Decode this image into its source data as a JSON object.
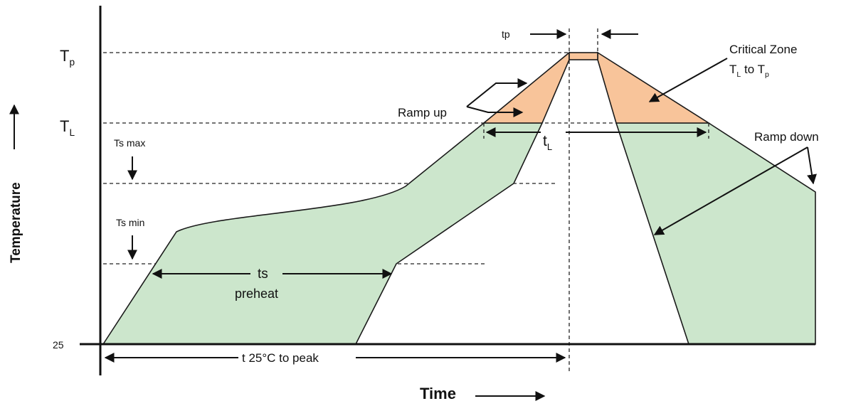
{
  "axis": {
    "y_label": "Temperature",
    "x_label": "Time",
    "origin_label": "25"
  },
  "levels": {
    "tp": {
      "main": "T",
      "sub": "p"
    },
    "tl": {
      "main": "T",
      "sub": "L"
    },
    "ts_max": "Ts max",
    "ts_min": "Ts min"
  },
  "durations": {
    "tp": "tp",
    "tl": {
      "main": "t",
      "sub": "L"
    },
    "ts": "ts",
    "preheat": "preheat",
    "t25": "t 25°C to peak"
  },
  "annotations": {
    "ramp_up": "Ramp up",
    "ramp_down": "Ramp down",
    "critical_zone_line1": "Critical Zone",
    "critical_zone_line2": {
      "a": "T",
      "a_sub": "L",
      "mid": " to T",
      "b_sub": "p"
    }
  },
  "colors": {
    "process_window": "#cce6cc",
    "critical_zone": "#f8c49a"
  }
}
